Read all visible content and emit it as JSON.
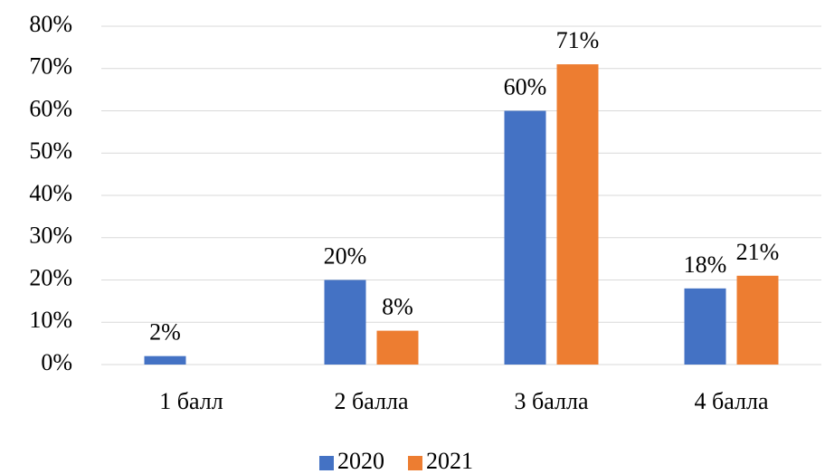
{
  "chart_data": {
    "type": "bar",
    "categories": [
      "1 балл",
      "2 балла",
      "3 балла",
      "4 балла"
    ],
    "series": [
      {
        "name": "2020",
        "color": "#4472c4",
        "values": [
          2,
          20,
          60,
          18
        ],
        "value_labels": [
          "2%",
          "20%",
          "60%",
          "18%"
        ]
      },
      {
        "name": "2021",
        "color": "#ed7d31",
        "values": [
          null,
          8,
          71,
          21
        ],
        "value_labels": [
          null,
          "8%",
          "71%",
          "21%"
        ]
      }
    ],
    "ylim": [
      0,
      80
    ],
    "yticks": [
      {
        "value": 0,
        "label": "0%"
      },
      {
        "value": 10,
        "label": "10%"
      },
      {
        "value": 20,
        "label": "20%"
      },
      {
        "value": 30,
        "label": "30%"
      },
      {
        "value": 40,
        "label": "40%"
      },
      {
        "value": 50,
        "label": "50%"
      },
      {
        "value": 60,
        "label": "60%"
      },
      {
        "value": 70,
        "label": "70%"
      },
      {
        "value": 80,
        "label": "80%"
      }
    ],
    "grid": true,
    "legend": "bottom"
  }
}
